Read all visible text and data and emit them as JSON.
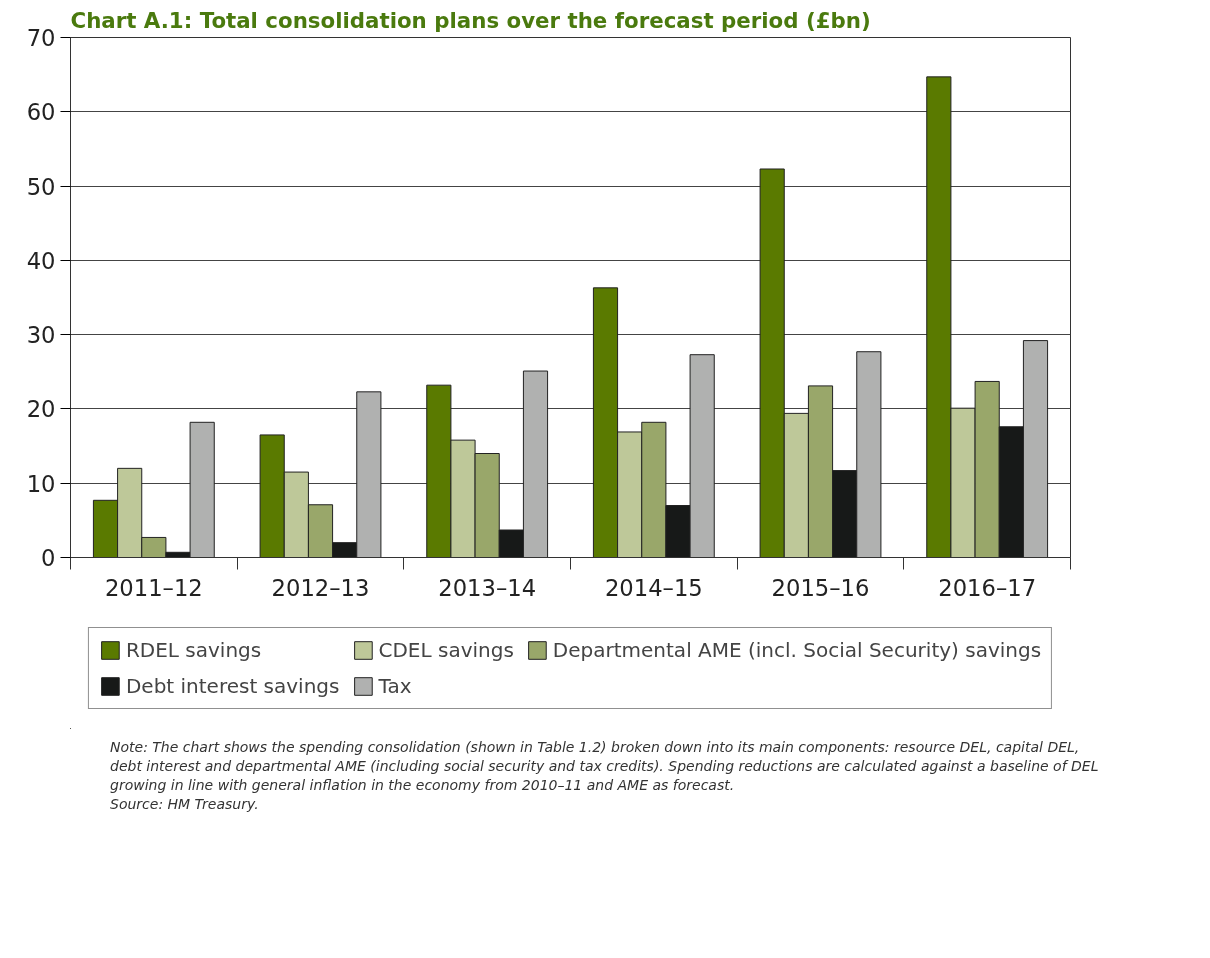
{
  "chart_data": {
    "type": "bar",
    "title": "Chart A.1: Total consolidation plans over the forecast period (£bn)",
    "categories": [
      "2011–12",
      "2012–13",
      "2013–14",
      "2014–15",
      "2015–16",
      "2016–17"
    ],
    "series": [
      {
        "name": "RDEL savings",
        "color": "#5a7a00",
        "values": [
          7.7,
          16.5,
          23.2,
          36.3,
          52.3,
          64.7
        ]
      },
      {
        "name": "CDEL savings",
        "color": "#bec899",
        "values": [
          12.0,
          11.5,
          15.8,
          16.9,
          19.4,
          20.1
        ]
      },
      {
        "name": "Departmental AME (incl. Social Security) savings",
        "color": "#99a76a",
        "values": [
          2.7,
          7.1,
          14.0,
          18.2,
          23.1,
          23.7
        ]
      },
      {
        "name": "Debt interest savings",
        "color": "#171918",
        "values": [
          0.7,
          2.0,
          3.7,
          7.0,
          11.7,
          17.6
        ]
      },
      {
        "name": "Tax",
        "color": "#b0b1b0",
        "values": [
          18.2,
          22.3,
          25.1,
          27.3,
          27.7,
          29.2
        ]
      }
    ],
    "ylim": [
      0,
      70
    ],
    "yticks": [
      0,
      10,
      20,
      30,
      40,
      50,
      60,
      70
    ],
    "grid": "y",
    "legend": "bottom",
    "annotations": [
      "Note: The chart shows the spending consolidation (shown in Table 1.2) broken down into its main components: resource DEL, capital DEL, debt interest and departmental AME (including social security and tax credits). Spending reductions are calculated against a baseline of DEL growing in line with general inflation in the economy from 2010–11 and AME as forecast.",
      "Source: HM Treasury."
    ]
  }
}
